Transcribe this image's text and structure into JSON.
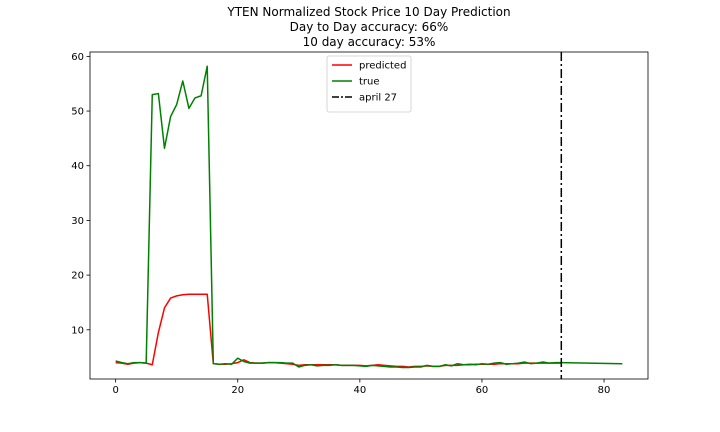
{
  "chart_data": {
    "type": "line",
    "title_lines": [
      "YTEN Normalized Stock Price 10 Day Prediction",
      "Day to Day accuracy: 66%",
      "10 day accuracy: 53%"
    ],
    "xlabel": "",
    "ylabel": "",
    "xlim": [
      -4.2,
      87.2
    ],
    "ylim": [
      1.0,
      60.8
    ],
    "x_ticks": [
      0,
      20,
      40,
      60,
      80
    ],
    "y_ticks": [
      10,
      20,
      30,
      40,
      50,
      60
    ],
    "grid": false,
    "legend_position": "top-center",
    "series": [
      {
        "name": "predicted",
        "color": "#ff0000",
        "style": "solid",
        "x": [
          0,
          1,
          2,
          3,
          4,
          5,
          6,
          7,
          8,
          9,
          10,
          11,
          12,
          13,
          14,
          15,
          16,
          17,
          18,
          19,
          20,
          21,
          22,
          23,
          24,
          25,
          26,
          27,
          28,
          29,
          30,
          31,
          32,
          33,
          34,
          35,
          36,
          37,
          38,
          39,
          40,
          41,
          42,
          43,
          44,
          45,
          46,
          47,
          48,
          49,
          50,
          51,
          52,
          53,
          54,
          55,
          56,
          57,
          58,
          59,
          60,
          61,
          62,
          63,
          64,
          65,
          66,
          67,
          68,
          69,
          70,
          71,
          72,
          73
        ],
        "y": [
          4.0,
          3.9,
          3.7,
          3.9,
          4.0,
          3.9,
          3.6,
          9.5,
          14.0,
          15.8,
          16.2,
          16.4,
          16.5,
          16.5,
          16.5,
          16.5,
          3.8,
          3.7,
          3.7,
          3.8,
          4.0,
          4.5,
          4.0,
          3.9,
          3.9,
          4.0,
          4.0,
          3.9,
          3.8,
          3.7,
          3.5,
          3.6,
          3.6,
          3.6,
          3.6,
          3.6,
          3.6,
          3.5,
          3.5,
          3.5,
          3.5,
          3.4,
          3.5,
          3.6,
          3.5,
          3.4,
          3.3,
          3.3,
          3.2,
          3.3,
          3.3,
          3.4,
          3.3,
          3.3,
          3.5,
          3.5,
          3.5,
          3.6,
          3.6,
          3.7,
          3.7,
          3.7,
          3.7,
          3.8,
          3.8,
          3.8,
          3.8,
          3.9,
          3.9,
          3.9,
          3.9,
          3.9,
          3.9,
          3.9
        ]
      },
      {
        "name": "true",
        "color": "#008000",
        "style": "solid",
        "x": [
          0,
          1,
          2,
          3,
          4,
          5,
          6,
          7,
          8,
          9,
          10,
          11,
          12,
          13,
          14,
          15,
          16,
          17,
          18,
          19,
          20,
          21,
          22,
          23,
          24,
          25,
          26,
          27,
          28,
          29,
          30,
          31,
          32,
          33,
          34,
          35,
          36,
          37,
          38,
          39,
          40,
          41,
          42,
          43,
          44,
          45,
          46,
          47,
          48,
          49,
          50,
          51,
          52,
          53,
          54,
          55,
          56,
          57,
          58,
          59,
          60,
          61,
          62,
          63,
          64,
          65,
          66,
          67,
          68,
          69,
          70,
          71,
          72,
          73,
          83
        ],
        "y": [
          4.3,
          4.0,
          3.8,
          4.0,
          4.0,
          3.9,
          53.0,
          53.2,
          43.2,
          49.0,
          51.2,
          55.5,
          50.5,
          52.4,
          52.8,
          58.2,
          3.8,
          3.7,
          3.8,
          3.7,
          4.8,
          4.2,
          3.9,
          3.9,
          3.9,
          4.0,
          4.0,
          4.0,
          3.9,
          3.9,
          3.2,
          3.5,
          3.6,
          3.4,
          3.5,
          3.5,
          3.6,
          3.5,
          3.5,
          3.5,
          3.4,
          3.3,
          3.5,
          3.4,
          3.3,
          3.2,
          3.2,
          3.1,
          3.1,
          3.2,
          3.2,
          3.5,
          3.3,
          3.3,
          3.6,
          3.4,
          3.8,
          3.6,
          3.7,
          3.6,
          3.8,
          3.7,
          3.9,
          4.0,
          3.7,
          3.8,
          3.9,
          4.1,
          3.8,
          3.9,
          4.1,
          3.9,
          4.0,
          4.0,
          3.8
        ]
      }
    ],
    "vlines": [
      {
        "name": "april 27",
        "x": 73,
        "color": "#000000",
        "style": "dashdot"
      }
    ]
  }
}
